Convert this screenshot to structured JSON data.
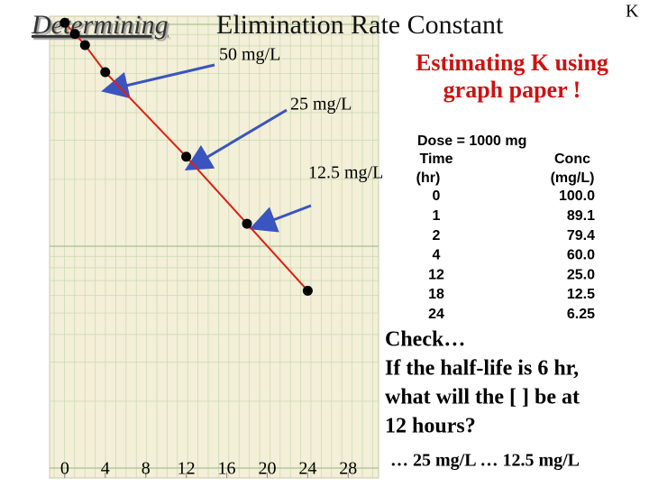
{
  "chart_data": {
    "type": "line",
    "title_emphasis": "Determining",
    "title": "Elimination Rate Constant",
    "x": [
      0,
      1,
      2,
      4,
      12,
      18,
      24
    ],
    "values": [
      100,
      89.1,
      79.4,
      60,
      25,
      12.5,
      6.25
    ],
    "value_labels": [
      "100.0",
      "89.1",
      "79.4",
      "60.0",
      "25.0",
      "12.5",
      "6.25"
    ],
    "color": "#e02010",
    "marker_color": "#000000",
    "xlim": [
      -1.5,
      31
    ],
    "xticks": [
      0,
      4,
      8,
      12,
      16,
      20,
      24,
      28
    ],
    "ylim": [
      0.9,
      107
    ],
    "log_y": true,
    "annotations": [
      "50 mg/L",
      "25 mg/L",
      "12.5 mg/L"
    ]
  },
  "corner_letter": "K",
  "heading": [
    "Estimating K using",
    "graph paper !"
  ],
  "table": {
    "dose": "Dose = 1000 mg",
    "headers": [
      [
        "Time",
        "(hr)"
      ],
      [
        "Conc",
        "(mg/L)"
      ]
    ]
  },
  "question": [
    "Check…",
    "If the half-life is 6 hr,",
    "what will the [ ] be at",
    "12 hours?"
  ],
  "answer": "… 25 mg/L … 12.5 mg/L"
}
